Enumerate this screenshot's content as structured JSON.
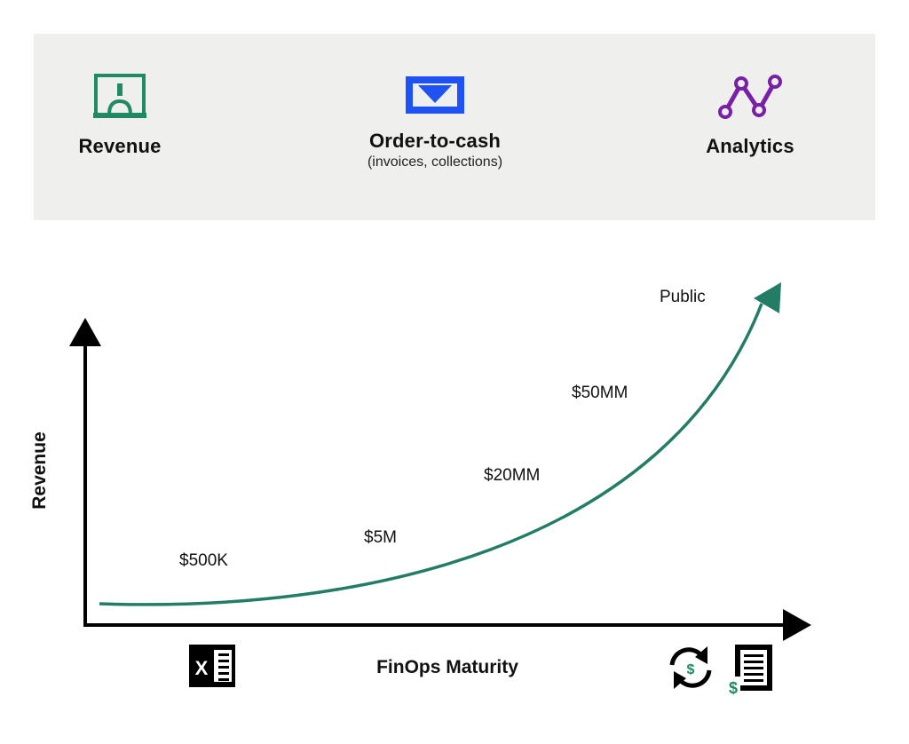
{
  "categories": [
    {
      "id": "revenue",
      "title": "Revenue",
      "subtitle": "",
      "icon": "ribbon-banner-icon",
      "color": "#1f8a63"
    },
    {
      "id": "order-to-cash",
      "title": "Order-to-cash",
      "subtitle": "(invoices, collections)",
      "icon": "envelope-icon",
      "color": "#1f52f2"
    },
    {
      "id": "analytics",
      "title": "Analytics",
      "subtitle": "",
      "icon": "line-graph-nodes-icon",
      "color": "#7a1fa8"
    }
  ],
  "chart": {
    "y_axis_label": "Revenue",
    "x_axis_label": "FinOps Maturity",
    "curve_color": "#237d66",
    "stages": [
      "$500K",
      "$5M",
      "$20MM",
      "$50MM",
      "Public"
    ],
    "left_icon": "spreadsheet-x-icon",
    "right_icons": [
      "sync-dollar-icon",
      "invoice-dollar-icon"
    ]
  }
}
